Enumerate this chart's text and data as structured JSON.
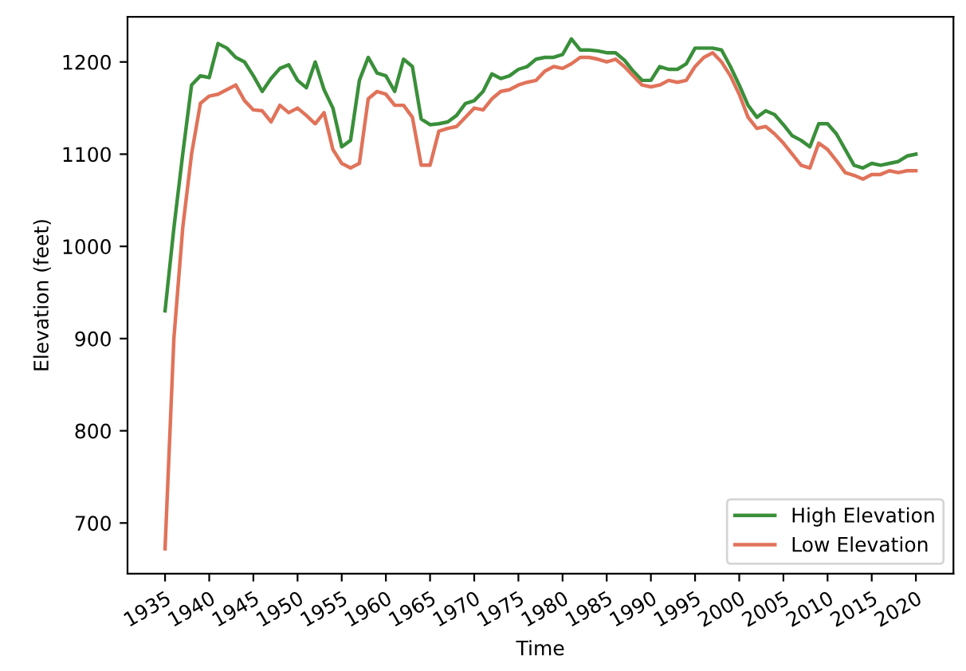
{
  "chart_data": {
    "type": "line",
    "xlabel": "Time",
    "ylabel": "Elevation (feet)",
    "x": [
      1935,
      1936,
      1937,
      1938,
      1939,
      1940,
      1941,
      1942,
      1943,
      1944,
      1945,
      1946,
      1947,
      1948,
      1949,
      1950,
      1951,
      1952,
      1953,
      1954,
      1955,
      1956,
      1957,
      1958,
      1959,
      1960,
      1961,
      1962,
      1963,
      1964,
      1965,
      1966,
      1967,
      1968,
      1969,
      1970,
      1971,
      1972,
      1973,
      1974,
      1975,
      1976,
      1977,
      1978,
      1979,
      1980,
      1981,
      1982,
      1983,
      1984,
      1985,
      1986,
      1987,
      1988,
      1989,
      1990,
      1991,
      1992,
      1993,
      1994,
      1995,
      1996,
      1997,
      1998,
      1999,
      2000,
      2001,
      2002,
      2003,
      2004,
      2005,
      2006,
      2007,
      2008,
      2009,
      2010,
      2011,
      2012,
      2013,
      2014,
      2015,
      2016,
      2017,
      2018,
      2019,
      2020
    ],
    "series": [
      {
        "name": "High Elevation",
        "color": "#3a8f3a",
        "values": [
          930,
          1020,
          1100,
          1175,
          1185,
          1183,
          1220,
          1215,
          1205,
          1200,
          1185,
          1168,
          1182,
          1193,
          1197,
          1180,
          1172,
          1200,
          1170,
          1150,
          1108,
          1115,
          1180,
          1205,
          1188,
          1185,
          1168,
          1203,
          1195,
          1138,
          1132,
          1133,
          1135,
          1142,
          1155,
          1158,
          1168,
          1187,
          1182,
          1185,
          1192,
          1195,
          1203,
          1205,
          1205,
          1208,
          1225,
          1213,
          1213,
          1212,
          1210,
          1210,
          1202,
          1190,
          1180,
          1180,
          1195,
          1192,
          1192,
          1198,
          1215,
          1215,
          1215,
          1213,
          1195,
          1175,
          1153,
          1140,
          1147,
          1143,
          1132,
          1120,
          1115,
          1108,
          1133,
          1133,
          1122,
          1105,
          1088,
          1085,
          1090,
          1088,
          1090,
          1092,
          1098,
          1100
        ]
      },
      {
        "name": "Low Elevation",
        "color": "#e0735a",
        "values": [
          672,
          900,
          1020,
          1100,
          1155,
          1163,
          1165,
          1170,
          1175,
          1158,
          1148,
          1147,
          1135,
          1153,
          1145,
          1150,
          1142,
          1133,
          1145,
          1105,
          1090,
          1085,
          1090,
          1160,
          1168,
          1165,
          1153,
          1153,
          1140,
          1088,
          1088,
          1125,
          1128,
          1130,
          1140,
          1150,
          1148,
          1160,
          1168,
          1170,
          1175,
          1178,
          1180,
          1190,
          1195,
          1193,
          1198,
          1205,
          1205,
          1203,
          1200,
          1203,
          1195,
          1185,
          1175,
          1173,
          1175,
          1180,
          1178,
          1180,
          1195,
          1205,
          1210,
          1200,
          1185,
          1165,
          1140,
          1128,
          1130,
          1122,
          1112,
          1100,
          1088,
          1085,
          1112,
          1105,
          1093,
          1080,
          1077,
          1073,
          1078,
          1078,
          1082,
          1080,
          1082,
          1082
        ]
      }
    ],
    "xlim": [
      1930.75,
      2024.25
    ],
    "ylim": [
      645,
      1249
    ],
    "xticks": [
      1935,
      1940,
      1945,
      1950,
      1955,
      1960,
      1965,
      1970,
      1975,
      1980,
      1985,
      1990,
      1995,
      2000,
      2005,
      2010,
      2015,
      2020
    ],
    "yticks": [
      700,
      800,
      900,
      1000,
      1100,
      1200
    ],
    "grid": false,
    "legend": "bottom right",
    "line_style": "solid",
    "marker": "none"
  }
}
